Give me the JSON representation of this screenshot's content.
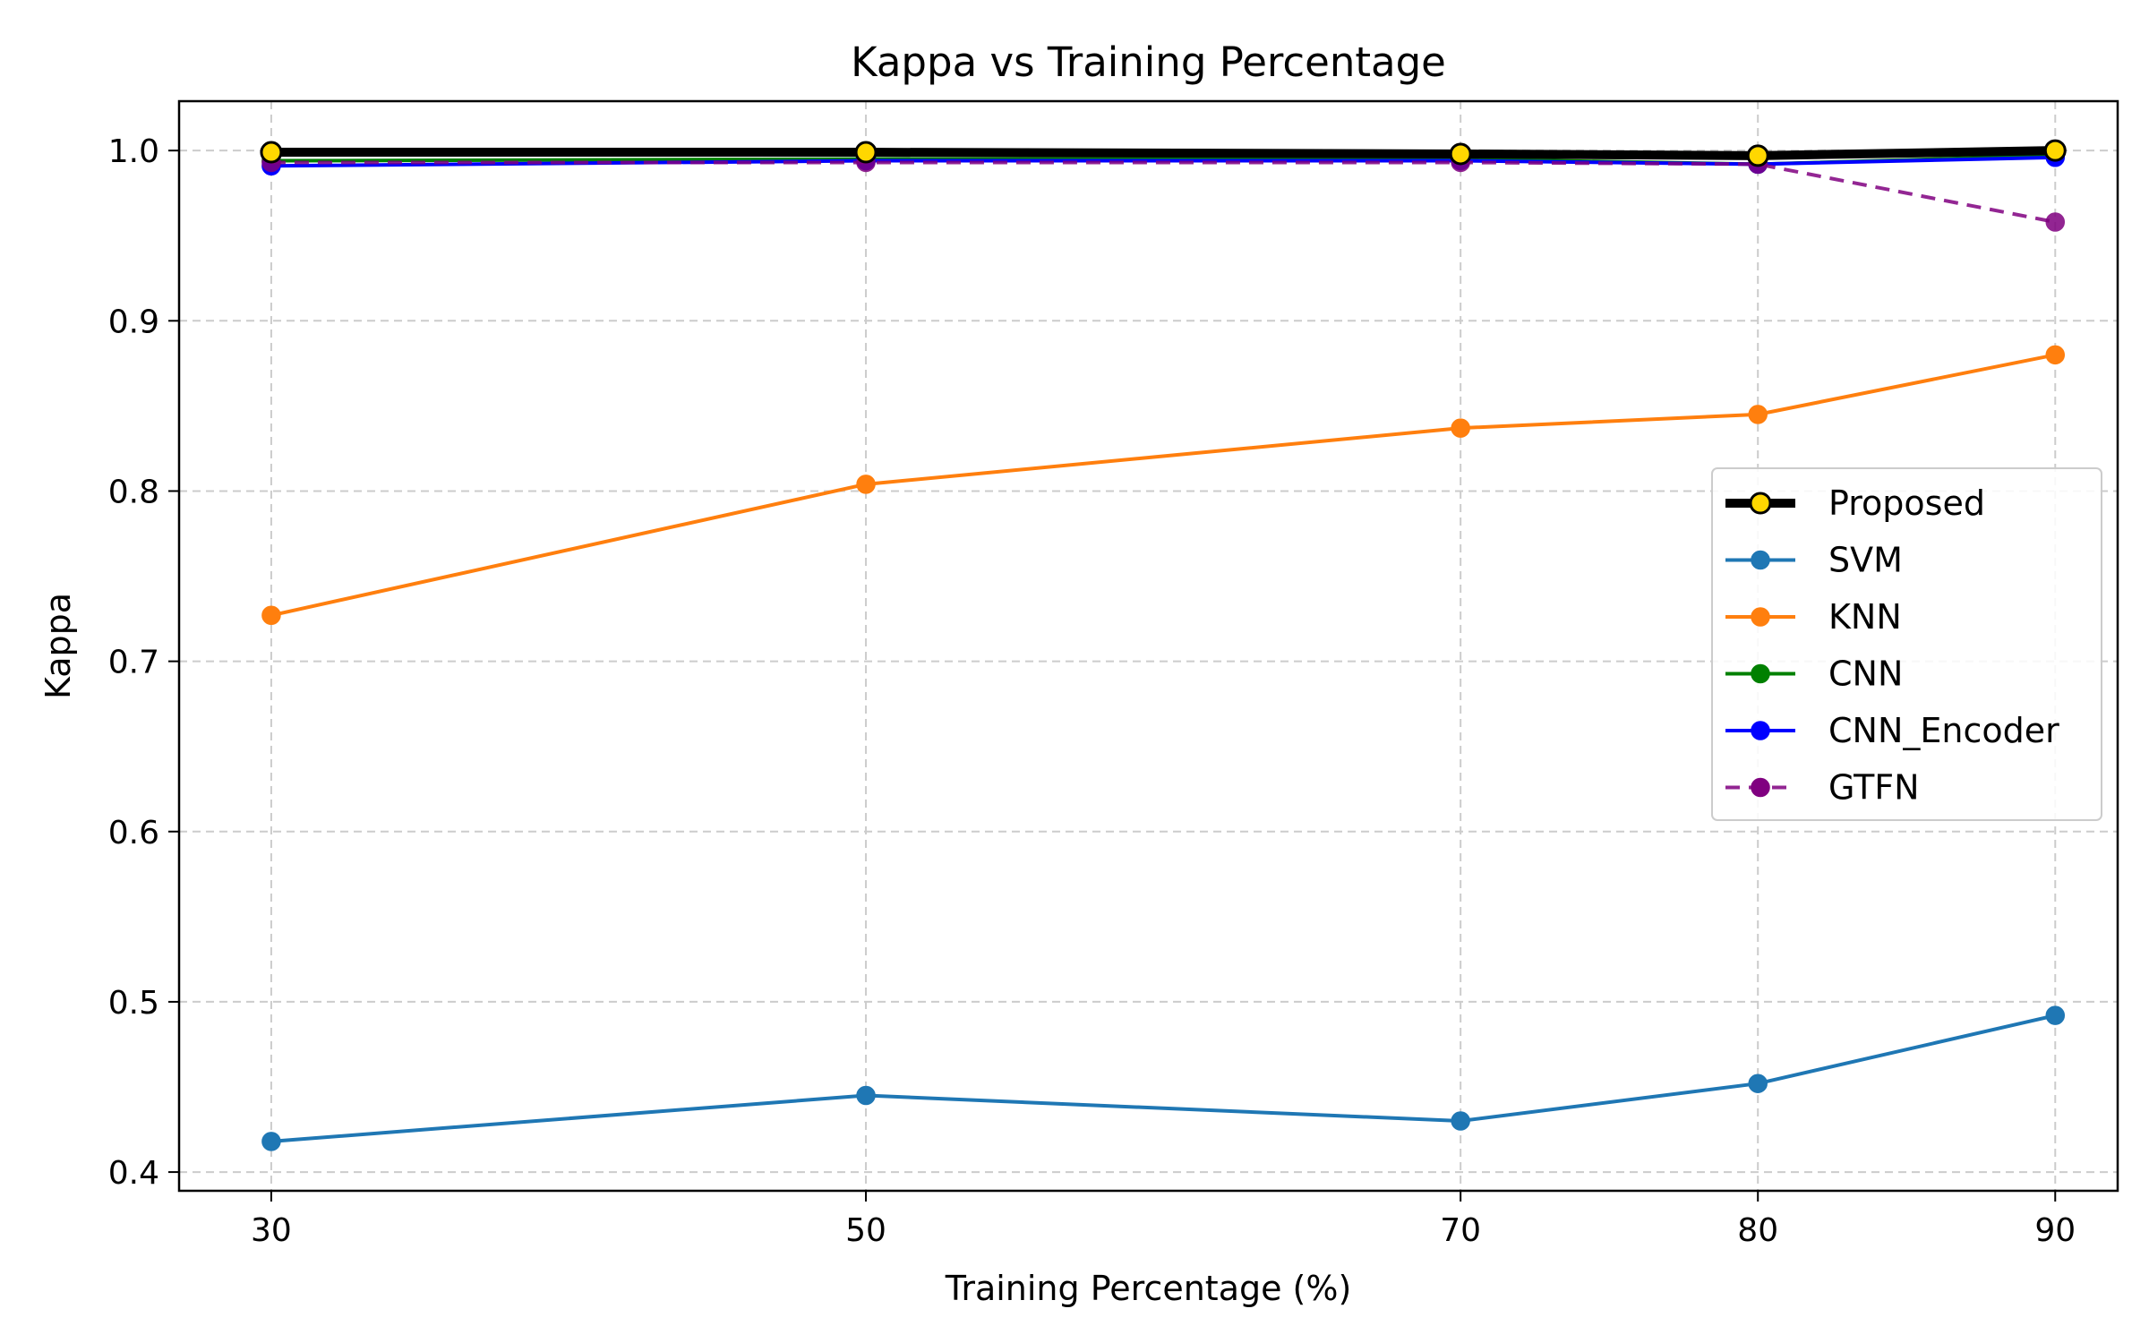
{
  "chart_data": {
    "type": "line",
    "title": "Kappa vs Training Percentage",
    "xlabel": "Training Percentage (%)",
    "ylabel": "Kappa",
    "x": [
      30,
      50,
      70,
      80,
      90
    ],
    "x_tick_labels": [
      "30",
      "50",
      "70",
      "80",
      "90"
    ],
    "y_ticks": [
      0.4,
      0.5,
      0.6,
      0.7,
      0.8,
      0.9,
      1.0
    ],
    "y_tick_labels": [
      "0.4",
      "0.5",
      "0.6",
      "0.7",
      "0.8",
      "0.9",
      "1.0"
    ],
    "xlim": [
      26.9,
      92.1
    ],
    "ylim": [
      0.389,
      1.029
    ],
    "grid": true,
    "legend_position": "center-right",
    "series": [
      {
        "name": "Proposed",
        "values": [
          0.999,
          0.999,
          0.998,
          0.997,
          1.0
        ],
        "color": "#000000",
        "marker_face": "#FFD700",
        "style": "solid",
        "bold": true
      },
      {
        "name": "SVM",
        "values": [
          0.418,
          0.445,
          0.43,
          0.452,
          0.492
        ],
        "color": "#1f77b4",
        "marker_face": "#1f77b4",
        "style": "solid"
      },
      {
        "name": "KNN",
        "values": [
          0.727,
          0.804,
          0.837,
          0.845,
          0.88
        ],
        "color": "#ff7f0e",
        "marker_face": "#ff7f0e",
        "style": "solid"
      },
      {
        "name": "CNN",
        "values": [
          0.994,
          0.995,
          0.995,
          0.992,
          0.997
        ],
        "color": "#008000",
        "marker_face": "#008000",
        "style": "solid"
      },
      {
        "name": "CNN_Encoder",
        "values": [
          0.991,
          0.994,
          0.994,
          0.992,
          0.996
        ],
        "color": "#0000ff",
        "marker_face": "#0000ff",
        "style": "solid"
      },
      {
        "name": "GTFN",
        "values": [
          0.993,
          0.993,
          0.993,
          0.992,
          0.958
        ],
        "color": "#800080",
        "marker_face": "#800080",
        "style": "dashed"
      }
    ]
  }
}
